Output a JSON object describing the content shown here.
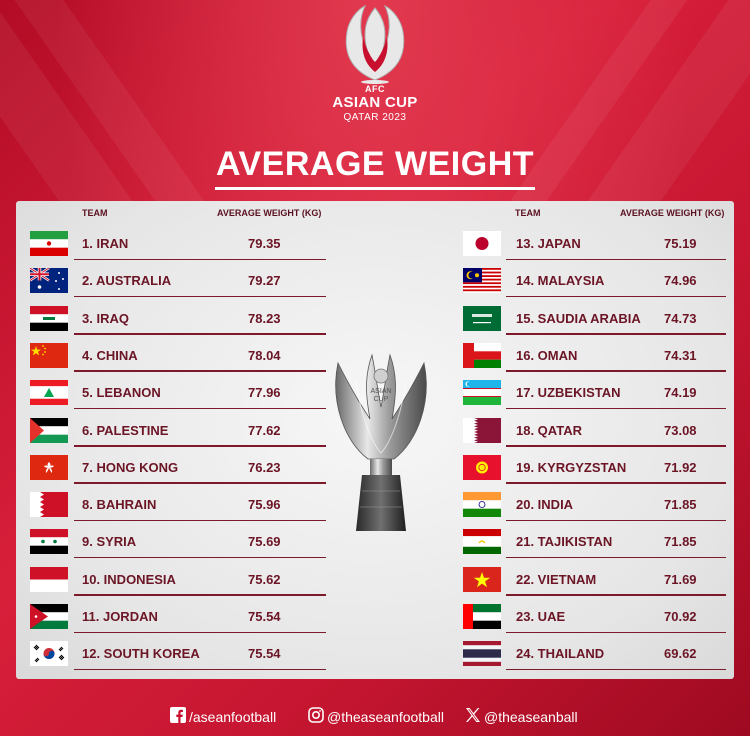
{
  "logo": {
    "line1": "AFC",
    "line2": "ASIAN CUP",
    "line3": "QATAR 2023"
  },
  "title": "AVERAGE WEIGHT",
  "headers": {
    "team": "TEAM",
    "avg": "AVERAGE WEIGHT (KG)"
  },
  "trophy_text": {
    "line1": "ASIAN",
    "line2": "CUP"
  },
  "left_rows": [
    {
      "name": "1. IRAN",
      "value": "79.35",
      "flag": "iran-flag-icon"
    },
    {
      "name": "2. AUSTRALIA",
      "value": "79.27",
      "flag": "australia-flag-icon"
    },
    {
      "name": "3. IRAQ",
      "value": "78.23",
      "flag": "iraq-flag-icon"
    },
    {
      "name": "4. CHINA",
      "value": "78.04",
      "flag": "china-flag-icon"
    },
    {
      "name": "5. LEBANON",
      "value": "77.96",
      "flag": "lebanon-flag-icon"
    },
    {
      "name": "6. PALESTINE",
      "value": "77.62",
      "flag": "palestine-flag-icon"
    },
    {
      "name": "7. HONG KONG",
      "value": "76.23",
      "flag": "hong-kong-flag-icon"
    },
    {
      "name": "8. BAHRAIN",
      "value": "75.96",
      "flag": "bahrain-flag-icon"
    },
    {
      "name": "9. SYRIA",
      "value": "75.69",
      "flag": "syria-flag-icon"
    },
    {
      "name": "10. INDONESIA",
      "value": "75.62",
      "flag": "indonesia-flag-icon"
    },
    {
      "name": "11. JORDAN",
      "value": "75.54",
      "flag": "jordan-flag-icon"
    },
    {
      "name": "12. SOUTH KOREA",
      "value": "75.54",
      "flag": "south-korea-flag-icon"
    }
  ],
  "right_rows": [
    {
      "name": "13. JAPAN",
      "value": "75.19",
      "flag": "japan-flag-icon"
    },
    {
      "name": "14. MALAYSIA",
      "value": "74.96",
      "flag": "malaysia-flag-icon"
    },
    {
      "name": "15. SAUDIA ARABIA",
      "value": "74.73",
      "flag": "saudi-arabia-flag-icon"
    },
    {
      "name": "16. OMAN",
      "value": "74.31",
      "flag": "oman-flag-icon"
    },
    {
      "name": "17. UZBEKISTAN",
      "value": "74.19",
      "flag": "uzbekistan-flag-icon"
    },
    {
      "name": "18. QATAR",
      "value": "73.08",
      "flag": "qatar-flag-icon"
    },
    {
      "name": "19. KYRGYZSTAN",
      "value": "71.92",
      "flag": "kyrgyzstan-flag-icon"
    },
    {
      "name": "20. INDIA",
      "value": "71.85",
      "flag": "india-flag-icon"
    },
    {
      "name": "21. TAJIKISTAN",
      "value": "71.85",
      "flag": "tajikistan-flag-icon"
    },
    {
      "name": "22. VIETNAM",
      "value": "71.69",
      "flag": "vietnam-flag-icon"
    },
    {
      "name": "23. UAE",
      "value": "70.92",
      "flag": "uae-flag-icon"
    },
    {
      "name": "24. THAILAND",
      "value": "69.62",
      "flag": "thailand-flag-icon"
    }
  ],
  "footer": {
    "facebook": "/aseanfootball",
    "instagram": "@theaseanfootball",
    "x": "@theaseanball"
  },
  "colors": {
    "background": "#c8102e",
    "text_dark": "#6b1525",
    "panel": "#ececec"
  }
}
